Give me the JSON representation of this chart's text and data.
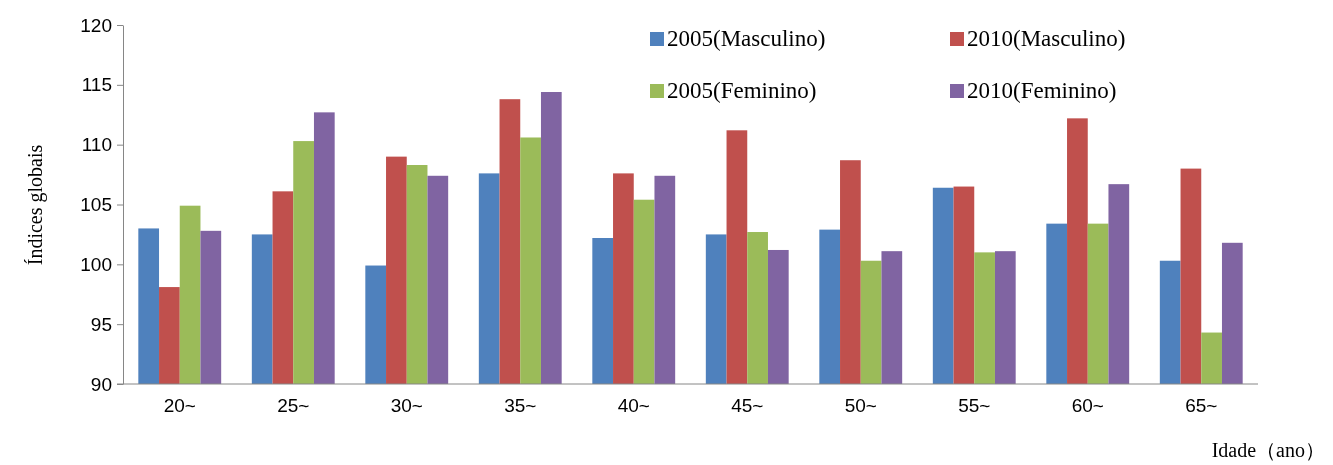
{
  "chart_data": {
    "type": "bar",
    "xlabel": "Idade（ano）",
    "ylabel": "Índices globais",
    "categories": [
      "20~",
      "25~",
      "30~",
      "35~",
      "40~",
      "45~",
      "50~",
      "55~",
      "60~",
      "65~"
    ],
    "series": [
      {
        "name": "2005(Masculino)",
        "color": "#4f81bd",
        "values": [
          103.0,
          102.5,
          99.9,
          107.6,
          102.2,
          102.5,
          102.9,
          106.4,
          103.4,
          100.3
        ]
      },
      {
        "name": "2010(Masculino)",
        "color": "#c0504d",
        "values": [
          98.1,
          106.1,
          109.0,
          113.8,
          107.6,
          111.2,
          108.7,
          106.5,
          112.2,
          108.0
        ]
      },
      {
        "name": "2005(Feminino)",
        "color": "#9bbb59",
        "values": [
          104.9,
          110.3,
          108.3,
          110.6,
          105.4,
          102.7,
          100.3,
          101.0,
          103.4,
          94.3
        ]
      },
      {
        "name": "2010(Feminino)",
        "color": "#8064a2",
        "values": [
          102.8,
          112.7,
          107.4,
          114.4,
          107.4,
          101.2,
          101.1,
          101.1,
          106.7,
          101.8
        ]
      }
    ],
    "ylim": [
      90,
      120
    ],
    "yticks": [
      90,
      95,
      100,
      105,
      110,
      115,
      120
    ],
    "grid": false,
    "legend": "top right"
  }
}
